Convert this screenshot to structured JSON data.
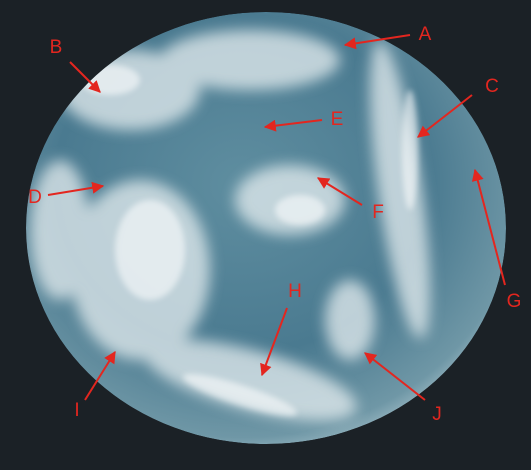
{
  "labels": [
    "A",
    "B",
    "C",
    "D",
    "E",
    "F",
    "G",
    "H",
    "I",
    "J"
  ]
}
